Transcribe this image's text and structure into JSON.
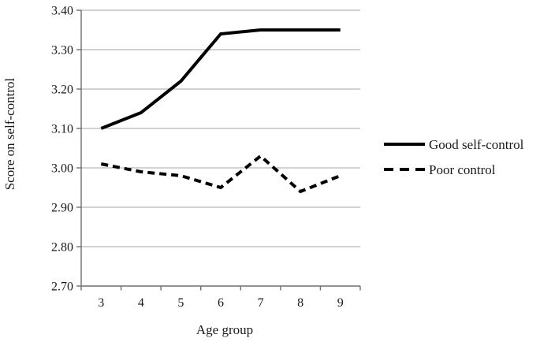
{
  "chart_data": {
    "type": "line",
    "title": "",
    "xlabel": "Age group",
    "ylabel": "Score on self-control",
    "x": [
      3,
      4,
      5,
      6,
      7,
      8,
      9
    ],
    "xtick_labels": [
      "3",
      "4",
      "5",
      "6",
      "7",
      "8",
      "9"
    ],
    "series": [
      {
        "name": "Good self-control",
        "line_style": "solid",
        "values": [
          3.1,
          3.14,
          3.22,
          3.34,
          3.35,
          3.35,
          3.35
        ]
      },
      {
        "name": "Poor control",
        "line_style": "dashed",
        "values": [
          3.01,
          2.99,
          2.98,
          2.95,
          3.03,
          2.94,
          2.98
        ]
      }
    ],
    "ylim": [
      2.7,
      3.4
    ],
    "ytick_step": 0.1,
    "ytick_labels": [
      "2.70",
      "2.80",
      "2.90",
      "3.00",
      "3.10",
      "3.20",
      "3.30",
      "3.40"
    ],
    "grid": true,
    "legend_position": "right"
  },
  "colors": {
    "series_line": "#000000",
    "gridline": "#a6a6a6",
    "axis": "#6e6e6e",
    "text": "#1a1a1a",
    "background": "#ffffff"
  }
}
